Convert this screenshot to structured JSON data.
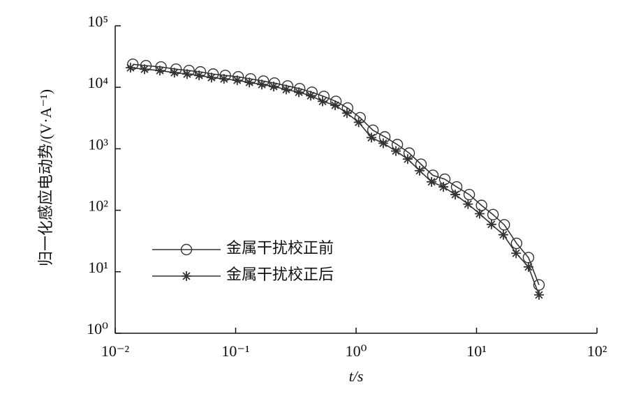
{
  "chart_data": {
    "type": "line",
    "xlabel": "t/s",
    "ylabel": "归一化感应电动势/(V·A⁻¹)",
    "xscale": "log",
    "yscale": "log",
    "xlim": [
      0.01,
      100
    ],
    "ylim": [
      1,
      100000
    ],
    "xticks": [
      {
        "value": 0.01,
        "label": "10⁻²"
      },
      {
        "value": 0.1,
        "label": "10⁻¹"
      },
      {
        "value": 1,
        "label": "10⁰"
      },
      {
        "value": 10,
        "label": "10¹"
      },
      {
        "value": 100,
        "label": "10²"
      }
    ],
    "yticks": [
      {
        "value": 1,
        "label": "10⁰"
      },
      {
        "value": 10,
        "label": "10¹"
      },
      {
        "value": 100,
        "label": "10²"
      },
      {
        "value": 1000,
        "label": "10³"
      },
      {
        "value": 10000,
        "label": "10⁴"
      },
      {
        "value": 100000,
        "label": "10⁵"
      }
    ],
    "legend": "lower left",
    "series": [
      {
        "name": "金属干扰校正前",
        "color": "#333333",
        "marker": "circle",
        "x": [
          0.014,
          0.018,
          0.024,
          0.032,
          0.041,
          0.051,
          0.065,
          0.082,
          0.105,
          0.133,
          0.17,
          0.21,
          0.27,
          0.34,
          0.43,
          0.54,
          0.68,
          0.85,
          1.08,
          1.38,
          1.73,
          2.2,
          2.76,
          3.46,
          4.34,
          5.45,
          6.84,
          8.7,
          11,
          13.7,
          17,
          21.5,
          27,
          33
        ],
        "values": [
          23700,
          22500,
          21400,
          19700,
          18700,
          17800,
          16400,
          15600,
          14800,
          13700,
          12600,
          11700,
          10500,
          9500,
          8300,
          7100,
          5900,
          4600,
          3200,
          2000,
          1560,
          1170,
          850,
          560,
          370,
          320,
          240,
          180,
          120,
          85,
          58,
          29,
          17,
          6.1
        ]
      },
      {
        "name": "金属干扰校正后",
        "color": "#333333",
        "marker": "star",
        "x": [
          0.0134,
          0.0175,
          0.0235,
          0.031,
          0.0395,
          0.0497,
          0.063,
          0.08,
          0.103,
          0.13,
          0.165,
          0.207,
          0.263,
          0.335,
          0.42,
          0.527,
          0.67,
          0.84,
          1.05,
          1.34,
          1.68,
          2.14,
          2.68,
          3.37,
          4.23,
          5.31,
          6.66,
          8.5,
          10.6,
          13.3,
          16.7,
          21.3,
          27,
          33
        ],
        "values": [
          20800,
          19700,
          18700,
          17300,
          16400,
          15600,
          14400,
          13700,
          13000,
          12000,
          11100,
          10300,
          9200,
          8300,
          7300,
          5900,
          5100,
          3800,
          2700,
          1520,
          1230,
          920,
          680,
          440,
          290,
          240,
          180,
          126,
          88,
          59,
          40,
          20,
          12,
          4.2
        ]
      }
    ]
  }
}
